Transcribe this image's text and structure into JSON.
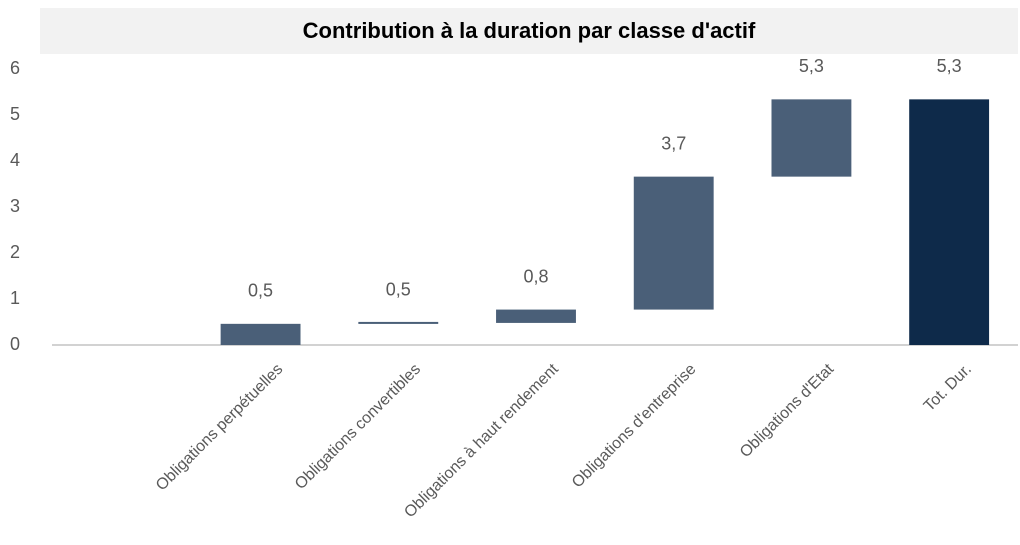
{
  "chart_data": {
    "type": "waterfall",
    "title": "Contribution à la duration par classe d'actif",
    "categories": [
      null,
      "Obligations perpétuelles",
      "Obligations convertibles",
      "Obligations à haut rendement",
      "Obligations d'entreprise",
      "Obligations d'Etat",
      "Tot. Dur."
    ],
    "values": [
      null,
      0.46,
      0.48,
      0.77,
      3.66,
      5.34,
      5.34
    ],
    "value_labels": [
      null,
      "0,5",
      "0,5",
      "0,8",
      "3,7",
      "5,3",
      "5,3"
    ],
    "total": [
      false,
      false,
      false,
      false,
      false,
      false,
      true
    ],
    "color": "#4a5f78",
    "total_color": "#0e2a4a",
    "ylim": [
      0,
      6
    ],
    "yticks": [
      0,
      1,
      2,
      3,
      4,
      5,
      6
    ],
    "grid": false
  }
}
